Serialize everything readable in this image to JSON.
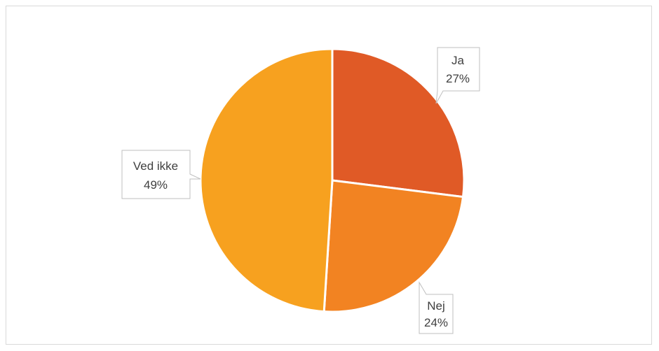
{
  "chart_data": {
    "type": "pie",
    "title": "",
    "start_angle_deg": 0,
    "direction": "clockwise",
    "slices": [
      {
        "label": "Ja",
        "percent_label": "27%",
        "value": 27,
        "color": "#e05a26"
      },
      {
        "label": "Nej",
        "percent_label": "24%",
        "value": 24,
        "color": "#f28322"
      },
      {
        "label": "Ved ikke",
        "percent_label": "49%",
        "value": 49,
        "color": "#f7a11f"
      }
    ],
    "legend": "none",
    "data_labels": "callouts"
  }
}
